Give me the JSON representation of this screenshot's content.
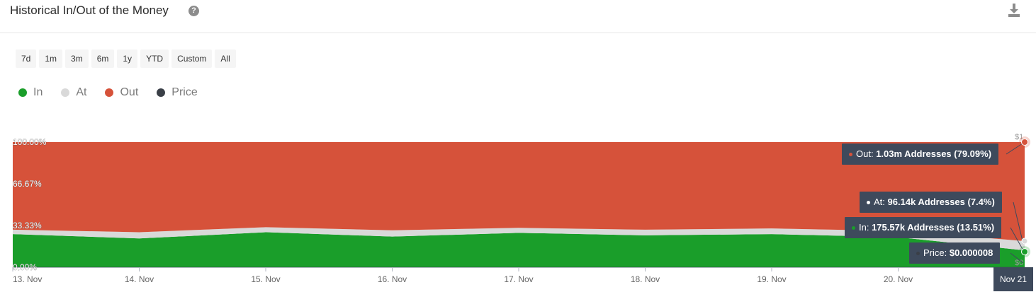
{
  "header": {
    "title": "Historical In/Out of the Money"
  },
  "ranges": [
    "7d",
    "1m",
    "3m",
    "6m",
    "1y",
    "YTD",
    "Custom",
    "All"
  ],
  "legend": [
    {
      "label": "In",
      "color": "#1a9e2a"
    },
    {
      "label": "At",
      "color": "#d9d9d9"
    },
    {
      "label": "Out",
      "color": "#d6523a"
    },
    {
      "label": "Price",
      "color": "#3a3f47"
    }
  ],
  "tooltips": {
    "out_label": "Out: ",
    "out_value": "1.03m Addresses (79.09%)",
    "at_label": "At: ",
    "at_value": "96.14k Addresses (7.4%)",
    "in_label": "In: ",
    "in_value": "175.57k Addresses (13.51%)",
    "price_label": "Price: ",
    "price_value": "$0.000008",
    "date": "Nov 21"
  },
  "chart_data": {
    "type": "area",
    "stacked": true,
    "x": [
      "13. Nov",
      "14. Nov",
      "15. Nov",
      "16. Nov",
      "17. Nov",
      "18. Nov",
      "19. Nov",
      "20. Nov",
      "Nov 21"
    ],
    "ylim": [
      0,
      100
    ],
    "ytick_labels": [
      "0.00%",
      "33.33%",
      "66.67%",
      "100.00%"
    ],
    "xtick_labels": [
      "13. Nov",
      "14. Nov",
      "15. Nov",
      "16. Nov",
      "17. Nov",
      "18. Nov",
      "19. Nov",
      "20. Nov"
    ],
    "right_axis_labels": [
      "$1",
      "$0"
    ],
    "series": [
      {
        "name": "In",
        "color": "#1a9e2a",
        "values": [
          26.5,
          23.0,
          28.0,
          24.5,
          27.5,
          25.5,
          26.5,
          24.0,
          13.51
        ]
      },
      {
        "name": "At",
        "color": "#d9d9d9",
        "values": [
          3.5,
          5.0,
          4.0,
          5.0,
          4.0,
          4.5,
          4.5,
          5.0,
          7.4
        ]
      },
      {
        "name": "Out",
        "color": "#d6523a",
        "values": [
          70.0,
          72.0,
          68.0,
          70.5,
          68.5,
          70.0,
          69.0,
          71.0,
          79.09
        ]
      }
    ]
  }
}
